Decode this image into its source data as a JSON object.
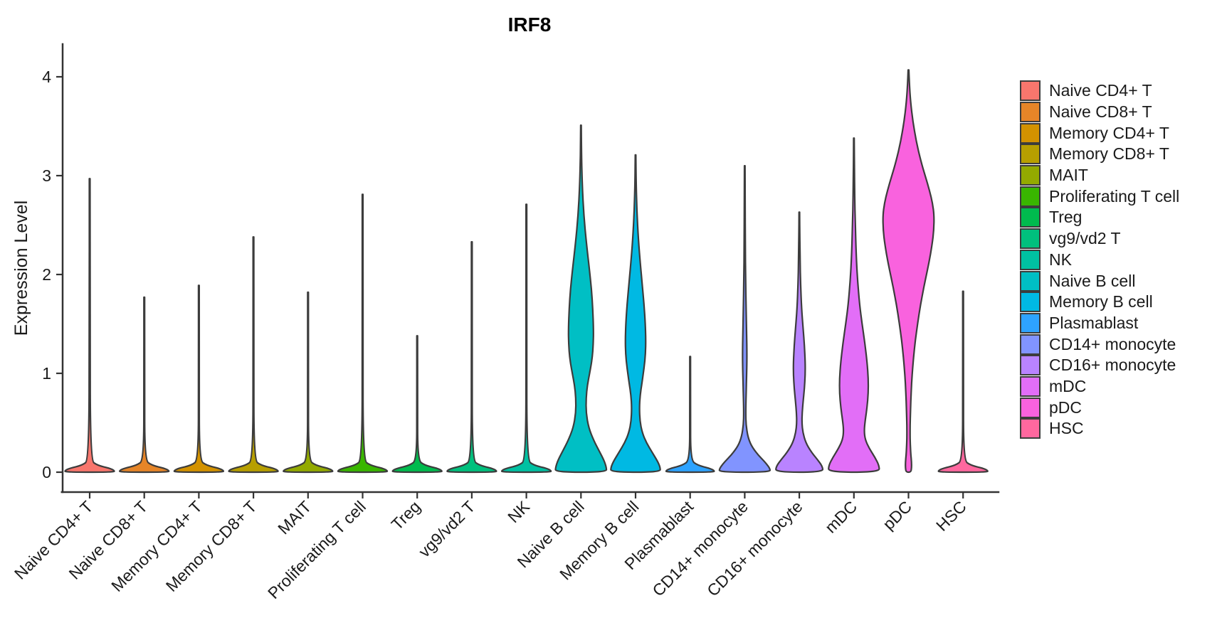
{
  "title": "IRF8",
  "y_axis": {
    "label": "Expression Level",
    "ticks": [
      0,
      1,
      2,
      3,
      4
    ]
  },
  "legend": {
    "position": "right"
  },
  "chart_data": {
    "type": "violin",
    "title": "IRF8",
    "xlabel": "",
    "ylabel": "Expression Level",
    "ylim": [
      0,
      4.3
    ],
    "yticks": [
      0,
      1,
      2,
      3,
      4
    ],
    "legend_position": "right",
    "grid": false,
    "categories": [
      {
        "name": "Naive CD4+ T",
        "color": "#F8766D",
        "max_expression": 2.97,
        "density_profile": [
          [
            2.97,
            0.013
          ],
          [
            1.5,
            0.013
          ],
          [
            0.12,
            0.03
          ],
          [
            0.07,
            0.3
          ],
          [
            0.04,
            0.78
          ],
          [
            0.018,
            0.96
          ],
          [
            0,
            0.96
          ]
        ]
      },
      {
        "name": "Naive CD8+ T",
        "color": "#E68528",
        "max_expression": 1.77,
        "density_profile": [
          [
            1.77,
            0.013
          ],
          [
            0.9,
            0.013
          ],
          [
            0.12,
            0.02
          ],
          [
            0.07,
            0.3
          ],
          [
            0.04,
            0.78
          ],
          [
            0.018,
            0.96
          ],
          [
            0,
            0.96
          ]
        ]
      },
      {
        "name": "Memory CD4+ T",
        "color": "#D39200",
        "max_expression": 1.89,
        "density_profile": [
          [
            1.89,
            0.013
          ],
          [
            0.95,
            0.013
          ],
          [
            0.12,
            0.02
          ],
          [
            0.07,
            0.3
          ],
          [
            0.04,
            0.78
          ],
          [
            0.018,
            0.96
          ],
          [
            0,
            0.96
          ]
        ]
      },
      {
        "name": "Memory CD8+ T",
        "color": "#B79F00",
        "max_expression": 2.38,
        "density_profile": [
          [
            2.38,
            0.013
          ],
          [
            1.2,
            0.013
          ],
          [
            0.12,
            0.02
          ],
          [
            0.07,
            0.3
          ],
          [
            0.04,
            0.78
          ],
          [
            0.018,
            0.96
          ],
          [
            0,
            0.96
          ]
        ]
      },
      {
        "name": "MAIT",
        "color": "#93AA00",
        "max_expression": 1.82,
        "density_profile": [
          [
            1.82,
            0.013
          ],
          [
            0.9,
            0.013
          ],
          [
            0.12,
            0.02
          ],
          [
            0.07,
            0.3
          ],
          [
            0.04,
            0.78
          ],
          [
            0.018,
            0.96
          ],
          [
            0,
            0.96
          ]
        ]
      },
      {
        "name": "Proliferating T cell",
        "color": "#39B600",
        "max_expression": 2.81,
        "density_profile": [
          [
            2.81,
            0.013
          ],
          [
            1.4,
            0.013
          ],
          [
            0.12,
            0.02
          ],
          [
            0.07,
            0.3
          ],
          [
            0.04,
            0.78
          ],
          [
            0.018,
            0.96
          ],
          [
            0,
            0.96
          ]
        ]
      },
      {
        "name": "Treg",
        "color": "#00BB4E",
        "max_expression": 1.38,
        "density_profile": [
          [
            1.38,
            0.013
          ],
          [
            0.7,
            0.013
          ],
          [
            0.12,
            0.02
          ],
          [
            0.07,
            0.3
          ],
          [
            0.04,
            0.78
          ],
          [
            0.018,
            0.96
          ],
          [
            0,
            0.96
          ]
        ]
      },
      {
        "name": "vg9/vd2 T",
        "color": "#00C07D",
        "max_expression": 2.33,
        "density_profile": [
          [
            2.33,
            0.013
          ],
          [
            1.2,
            0.013
          ],
          [
            0.12,
            0.02
          ],
          [
            0.07,
            0.3
          ],
          [
            0.04,
            0.78
          ],
          [
            0.018,
            0.96
          ],
          [
            0,
            0.96
          ]
        ]
      },
      {
        "name": "NK",
        "color": "#00C1A2",
        "max_expression": 2.71,
        "density_profile": [
          [
            2.71,
            0.013
          ],
          [
            1.35,
            0.013
          ],
          [
            0.12,
            0.02
          ],
          [
            0.07,
            0.3
          ],
          [
            0.04,
            0.78
          ],
          [
            0.018,
            0.96
          ],
          [
            0,
            0.96
          ]
        ]
      },
      {
        "name": "Naive B cell",
        "color": "#00BFC4",
        "max_expression": 3.51,
        "density_profile": [
          [
            3.51,
            0.012
          ],
          [
            3.2,
            0.02
          ],
          [
            2.9,
            0.05
          ],
          [
            2.6,
            0.11
          ],
          [
            2.3,
            0.22
          ],
          [
            2.05,
            0.33
          ],
          [
            1.85,
            0.41
          ],
          [
            1.65,
            0.46
          ],
          [
            1.45,
            0.49
          ],
          [
            1.3,
            0.48
          ],
          [
            1.15,
            0.44
          ],
          [
            1.0,
            0.34
          ],
          [
            0.88,
            0.25
          ],
          [
            0.75,
            0.2
          ],
          [
            0.6,
            0.2
          ],
          [
            0.45,
            0.3
          ],
          [
            0.32,
            0.5
          ],
          [
            0.22,
            0.7
          ],
          [
            0.12,
            0.9
          ],
          [
            0.05,
            0.99
          ],
          [
            0,
            1.0
          ]
        ]
      },
      {
        "name": "Memory B cell",
        "color": "#00B9E3",
        "max_expression": 3.21,
        "density_profile": [
          [
            3.21,
            0.012
          ],
          [
            2.95,
            0.02
          ],
          [
            2.65,
            0.05
          ],
          [
            2.35,
            0.11
          ],
          [
            2.1,
            0.19
          ],
          [
            1.9,
            0.26
          ],
          [
            1.7,
            0.33
          ],
          [
            1.5,
            0.38
          ],
          [
            1.35,
            0.4
          ],
          [
            1.2,
            0.39
          ],
          [
            1.05,
            0.33
          ],
          [
            0.9,
            0.25
          ],
          [
            0.78,
            0.18
          ],
          [
            0.65,
            0.15
          ],
          [
            0.52,
            0.17
          ],
          [
            0.4,
            0.26
          ],
          [
            0.3,
            0.42
          ],
          [
            0.2,
            0.65
          ],
          [
            0.11,
            0.86
          ],
          [
            0.05,
            0.96
          ],
          [
            0,
            0.97
          ]
        ]
      },
      {
        "name": "Plasmablast",
        "color": "#2EA3FF",
        "max_expression": 1.17,
        "density_profile": [
          [
            1.17,
            0.013
          ],
          [
            0.6,
            0.013
          ],
          [
            0.12,
            0.02
          ],
          [
            0.07,
            0.3
          ],
          [
            0.04,
            0.75
          ],
          [
            0.018,
            0.94
          ],
          [
            0,
            0.94
          ]
        ]
      },
      {
        "name": "CD14+ monocyte",
        "color": "#8194FF",
        "max_expression": 3.1,
        "density_profile": [
          [
            3.1,
            0.012
          ],
          [
            2.7,
            0.016
          ],
          [
            2.3,
            0.022
          ],
          [
            1.95,
            0.035
          ],
          [
            1.65,
            0.055
          ],
          [
            1.4,
            0.075
          ],
          [
            1.2,
            0.085
          ],
          [
            1.05,
            0.08
          ],
          [
            0.9,
            0.065
          ],
          [
            0.75,
            0.05
          ],
          [
            0.6,
            0.04
          ],
          [
            0.48,
            0.05
          ],
          [
            0.36,
            0.12
          ],
          [
            0.27,
            0.25
          ],
          [
            0.18,
            0.5
          ],
          [
            0.1,
            0.8
          ],
          [
            0.04,
            0.98
          ],
          [
            0,
            1.0
          ]
        ]
      },
      {
        "name": "CD16+ monocyte",
        "color": "#B983FF",
        "max_expression": 2.63,
        "density_profile": [
          [
            2.63,
            0.012
          ],
          [
            2.4,
            0.018
          ],
          [
            2.15,
            0.03
          ],
          [
            1.9,
            0.05
          ],
          [
            1.65,
            0.09
          ],
          [
            1.45,
            0.15
          ],
          [
            1.28,
            0.2
          ],
          [
            1.12,
            0.23
          ],
          [
            0.98,
            0.23
          ],
          [
            0.85,
            0.2
          ],
          [
            0.72,
            0.15
          ],
          [
            0.6,
            0.11
          ],
          [
            0.5,
            0.1
          ],
          [
            0.4,
            0.14
          ],
          [
            0.3,
            0.25
          ],
          [
            0.21,
            0.45
          ],
          [
            0.13,
            0.7
          ],
          [
            0.06,
            0.9
          ],
          [
            0,
            0.93
          ]
        ]
      },
      {
        "name": "mDC",
        "color": "#E26EF7",
        "max_expression": 3.38,
        "density_profile": [
          [
            3.38,
            0.012
          ],
          [
            3.1,
            0.018
          ],
          [
            2.8,
            0.03
          ],
          [
            2.5,
            0.055
          ],
          [
            2.2,
            0.09
          ],
          [
            1.95,
            0.14
          ],
          [
            1.7,
            0.22
          ],
          [
            1.5,
            0.32
          ],
          [
            1.3,
            0.43
          ],
          [
            1.1,
            0.52
          ],
          [
            0.95,
            0.56
          ],
          [
            0.8,
            0.56
          ],
          [
            0.65,
            0.51
          ],
          [
            0.52,
            0.44
          ],
          [
            0.42,
            0.4
          ],
          [
            0.33,
            0.44
          ],
          [
            0.24,
            0.6
          ],
          [
            0.15,
            0.82
          ],
          [
            0.07,
            0.98
          ],
          [
            0,
            1.0
          ]
        ]
      },
      {
        "name": "pDC",
        "color": "#F962DE",
        "max_expression": 4.07,
        "density_profile": [
          [
            4.07,
            0.015
          ],
          [
            3.92,
            0.035
          ],
          [
            3.75,
            0.08
          ],
          [
            3.55,
            0.17
          ],
          [
            3.35,
            0.3
          ],
          [
            3.15,
            0.48
          ],
          [
            3.0,
            0.65
          ],
          [
            2.85,
            0.82
          ],
          [
            2.72,
            0.94
          ],
          [
            2.6,
            1.0
          ],
          [
            2.45,
            0.99
          ],
          [
            2.3,
            0.92
          ],
          [
            2.12,
            0.8
          ],
          [
            1.95,
            0.66
          ],
          [
            1.78,
            0.53
          ],
          [
            1.6,
            0.41
          ],
          [
            1.42,
            0.31
          ],
          [
            1.25,
            0.23
          ],
          [
            1.08,
            0.17
          ],
          [
            0.9,
            0.12
          ],
          [
            0.72,
            0.09
          ],
          [
            0.55,
            0.07
          ],
          [
            0.4,
            0.06
          ],
          [
            0.28,
            0.07
          ],
          [
            0.18,
            0.09
          ],
          [
            0.1,
            0.12
          ],
          [
            0.04,
            0.12
          ],
          [
            0,
            0.09
          ]
        ]
      },
      {
        "name": "HSC",
        "color": "#FF689F",
        "max_expression": 1.83,
        "density_profile": [
          [
            1.83,
            0.013
          ],
          [
            0.9,
            0.013
          ],
          [
            0.12,
            0.02
          ],
          [
            0.07,
            0.3
          ],
          [
            0.04,
            0.78
          ],
          [
            0.018,
            0.96
          ],
          [
            0,
            0.96
          ]
        ]
      }
    ]
  }
}
